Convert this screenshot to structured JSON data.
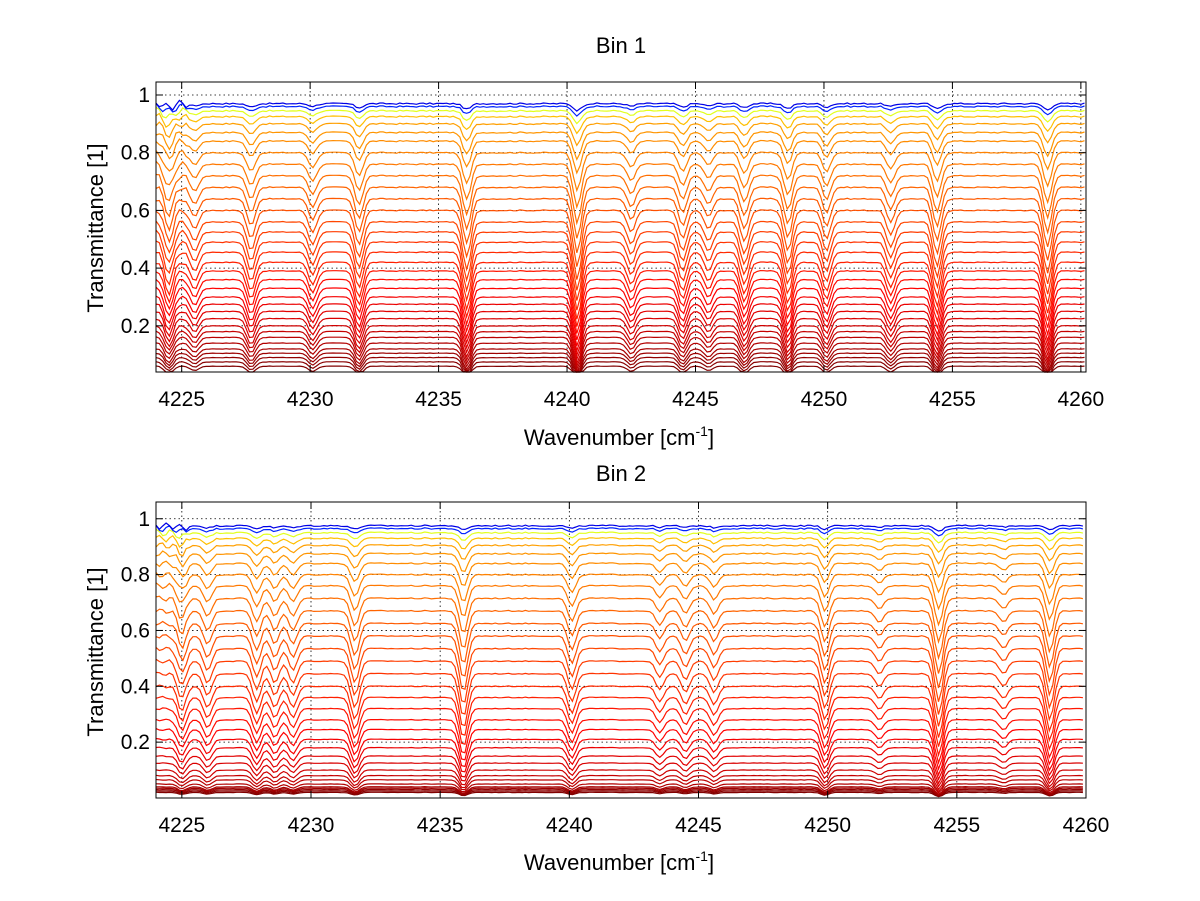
{
  "chart_data": [
    {
      "type": "line",
      "title": "Bin 1",
      "xlabel": "Wavenumber [cm",
      "xlabel_sup": "-1",
      "xlabel_tail": "]",
      "ylabel": "Transmittance [1]",
      "xlim": [
        4224,
        4260.2
      ],
      "ylim": [
        0.04,
        1.045
      ],
      "xticks": [
        4225,
        4230,
        4235,
        4240,
        4245,
        4250,
        4255,
        4260
      ],
      "xtick_labels": [
        "4225",
        "4230",
        "4235",
        "4240",
        "4245",
        "4250",
        "4255",
        "4260"
      ],
      "yticks": [
        0.2,
        0.4,
        0.6,
        0.8,
        1
      ],
      "ytick_labels": [
        "0.2",
        "0.4",
        "0.6",
        "0.8",
        "1"
      ],
      "grid": true,
      "colormap": "jet",
      "series_count": 34,
      "baselines": [
        0.06,
        0.075,
        0.09,
        0.105,
        0.12,
        0.14,
        0.16,
        0.18,
        0.2,
        0.225,
        0.25,
        0.275,
        0.3,
        0.33,
        0.36,
        0.39,
        0.42,
        0.455,
        0.49,
        0.525,
        0.56,
        0.6,
        0.64,
        0.68,
        0.72,
        0.76,
        0.8,
        0.84,
        0.87,
        0.9,
        0.925,
        0.945,
        0.96,
        0.97
      ],
      "absorption_lines": [
        {
          "x": 4224.5,
          "depth": 0.5
        },
        {
          "x": 4225.5,
          "depth": 0.3
        },
        {
          "x": 4227.7,
          "depth": 0.45
        },
        {
          "x": 4230.1,
          "depth": 0.35
        },
        {
          "x": 4231.9,
          "depth": 0.55
        },
        {
          "x": 4236.1,
          "depth": 0.75
        },
        {
          "x": 4240.4,
          "depth": 0.9
        },
        {
          "x": 4242.5,
          "depth": 0.35
        },
        {
          "x": 4244.5,
          "depth": 0.45
        },
        {
          "x": 4245.5,
          "depth": 0.3
        },
        {
          "x": 4246.9,
          "depth": 0.5
        },
        {
          "x": 4248.6,
          "depth": 0.65
        },
        {
          "x": 4250.1,
          "depth": 0.45
        },
        {
          "x": 4252.6,
          "depth": 0.4
        },
        {
          "x": 4254.4,
          "depth": 0.7
        },
        {
          "x": 4258.7,
          "depth": 0.8
        }
      ]
    },
    {
      "type": "line",
      "title": "Bin 2",
      "xlabel": "Wavenumber [cm",
      "xlabel_sup": "-1",
      "xlabel_tail": "]",
      "ylabel": "Transmittance [1]",
      "xlim": [
        4224,
        4260
      ],
      "ylim": [
        0,
        1.06
      ],
      "xticks": [
        4225,
        4230,
        4235,
        4240,
        4245,
        4250,
        4255,
        4260
      ],
      "xtick_labels": [
        "4225",
        "4230",
        "4235",
        "4240",
        "4245",
        "4250",
        "4255",
        "4260"
      ],
      "yticks": [
        0.2,
        0.4,
        0.6,
        0.8,
        1
      ],
      "ytick_labels": [
        "0.2",
        "0.4",
        "0.6",
        "0.8",
        "1"
      ],
      "grid": true,
      "colormap": "jet",
      "series_count": 34,
      "baselines": [
        0.02,
        0.025,
        0.03,
        0.035,
        0.04,
        0.05,
        0.065,
        0.08,
        0.1,
        0.125,
        0.15,
        0.18,
        0.21,
        0.245,
        0.28,
        0.32,
        0.36,
        0.4,
        0.445,
        0.49,
        0.535,
        0.58,
        0.625,
        0.67,
        0.715,
        0.76,
        0.8,
        0.84,
        0.875,
        0.905,
        0.93,
        0.95,
        0.965,
        0.975
      ],
      "absorption_lines": [
        {
          "x": 4225.0,
          "depth": 0.4
        },
        {
          "x": 4226.0,
          "depth": 0.35
        },
        {
          "x": 4227.9,
          "depth": 0.45
        },
        {
          "x": 4228.6,
          "depth": 0.35
        },
        {
          "x": 4229.3,
          "depth": 0.35
        },
        {
          "x": 4231.7,
          "depth": 0.55
        },
        {
          "x": 4235.9,
          "depth": 0.7
        },
        {
          "x": 4240.1,
          "depth": 0.45
        },
        {
          "x": 4243.5,
          "depth": 0.25
        },
        {
          "x": 4244.5,
          "depth": 0.3
        },
        {
          "x": 4245.6,
          "depth": 0.3
        },
        {
          "x": 4249.9,
          "depth": 0.55
        },
        {
          "x": 4252.0,
          "depth": 0.2
        },
        {
          "x": 4254.3,
          "depth": 0.85
        },
        {
          "x": 4256.8,
          "depth": 0.2
        },
        {
          "x": 4258.6,
          "depth": 0.75
        }
      ]
    }
  ]
}
